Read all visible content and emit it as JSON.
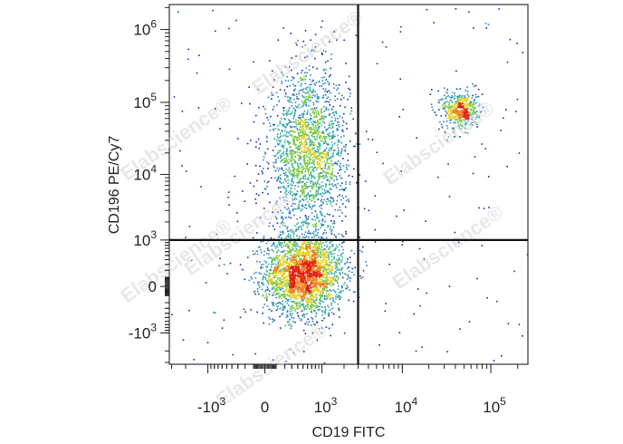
{
  "chart_data": {
    "type": "scatter",
    "style": "flow-cytometry density dot plot",
    "xlabel": "CD19 FITC",
    "ylabel": "CD196 PE/Cy7",
    "x_scale": "biexponential",
    "y_scale": "biexponential",
    "x_ticks": [
      {
        "value": -1000,
        "base": "-10",
        "exp": "3"
      },
      {
        "value": 0,
        "base": "0",
        "exp": ""
      },
      {
        "value": 1000,
        "base": "10",
        "exp": "3"
      },
      {
        "value": 10000,
        "base": "10",
        "exp": "4"
      },
      {
        "value": 100000,
        "base": "10",
        "exp": "5"
      }
    ],
    "y_ticks": [
      {
        "value": -1000,
        "base": "-10",
        "exp": "3"
      },
      {
        "value": 0,
        "base": "0",
        "exp": ""
      },
      {
        "value": 1000,
        "base": "10",
        "exp": "3"
      },
      {
        "value": 10000,
        "base": "10",
        "exp": "4"
      },
      {
        "value": 100000,
        "base": "10",
        "exp": "5"
      },
      {
        "value": 1000000,
        "base": "10",
        "exp": "6"
      }
    ],
    "quadrant_gates": {
      "x": 3000,
      "y": 1000
    },
    "populations": [
      {
        "description": "CD19- CD196- cluster",
        "x_center": 500,
        "y_center": 150,
        "density": "high"
      },
      {
        "description": "CD19- CD196+ cluster",
        "x_center": 600,
        "y_center": 20000,
        "density": "medium"
      },
      {
        "description": "CD19+ CD196+ cluster",
        "x_center": 45000,
        "y_center": 80000,
        "density": "medium"
      }
    ],
    "grid": false,
    "legend": "none",
    "color_scale": [
      "#1a2a9a",
      "#2e7cc4",
      "#3cb0a0",
      "#7cc840",
      "#e8d020",
      "#f08020",
      "#e02010"
    ]
  },
  "watermark_text": "Elabscience®"
}
